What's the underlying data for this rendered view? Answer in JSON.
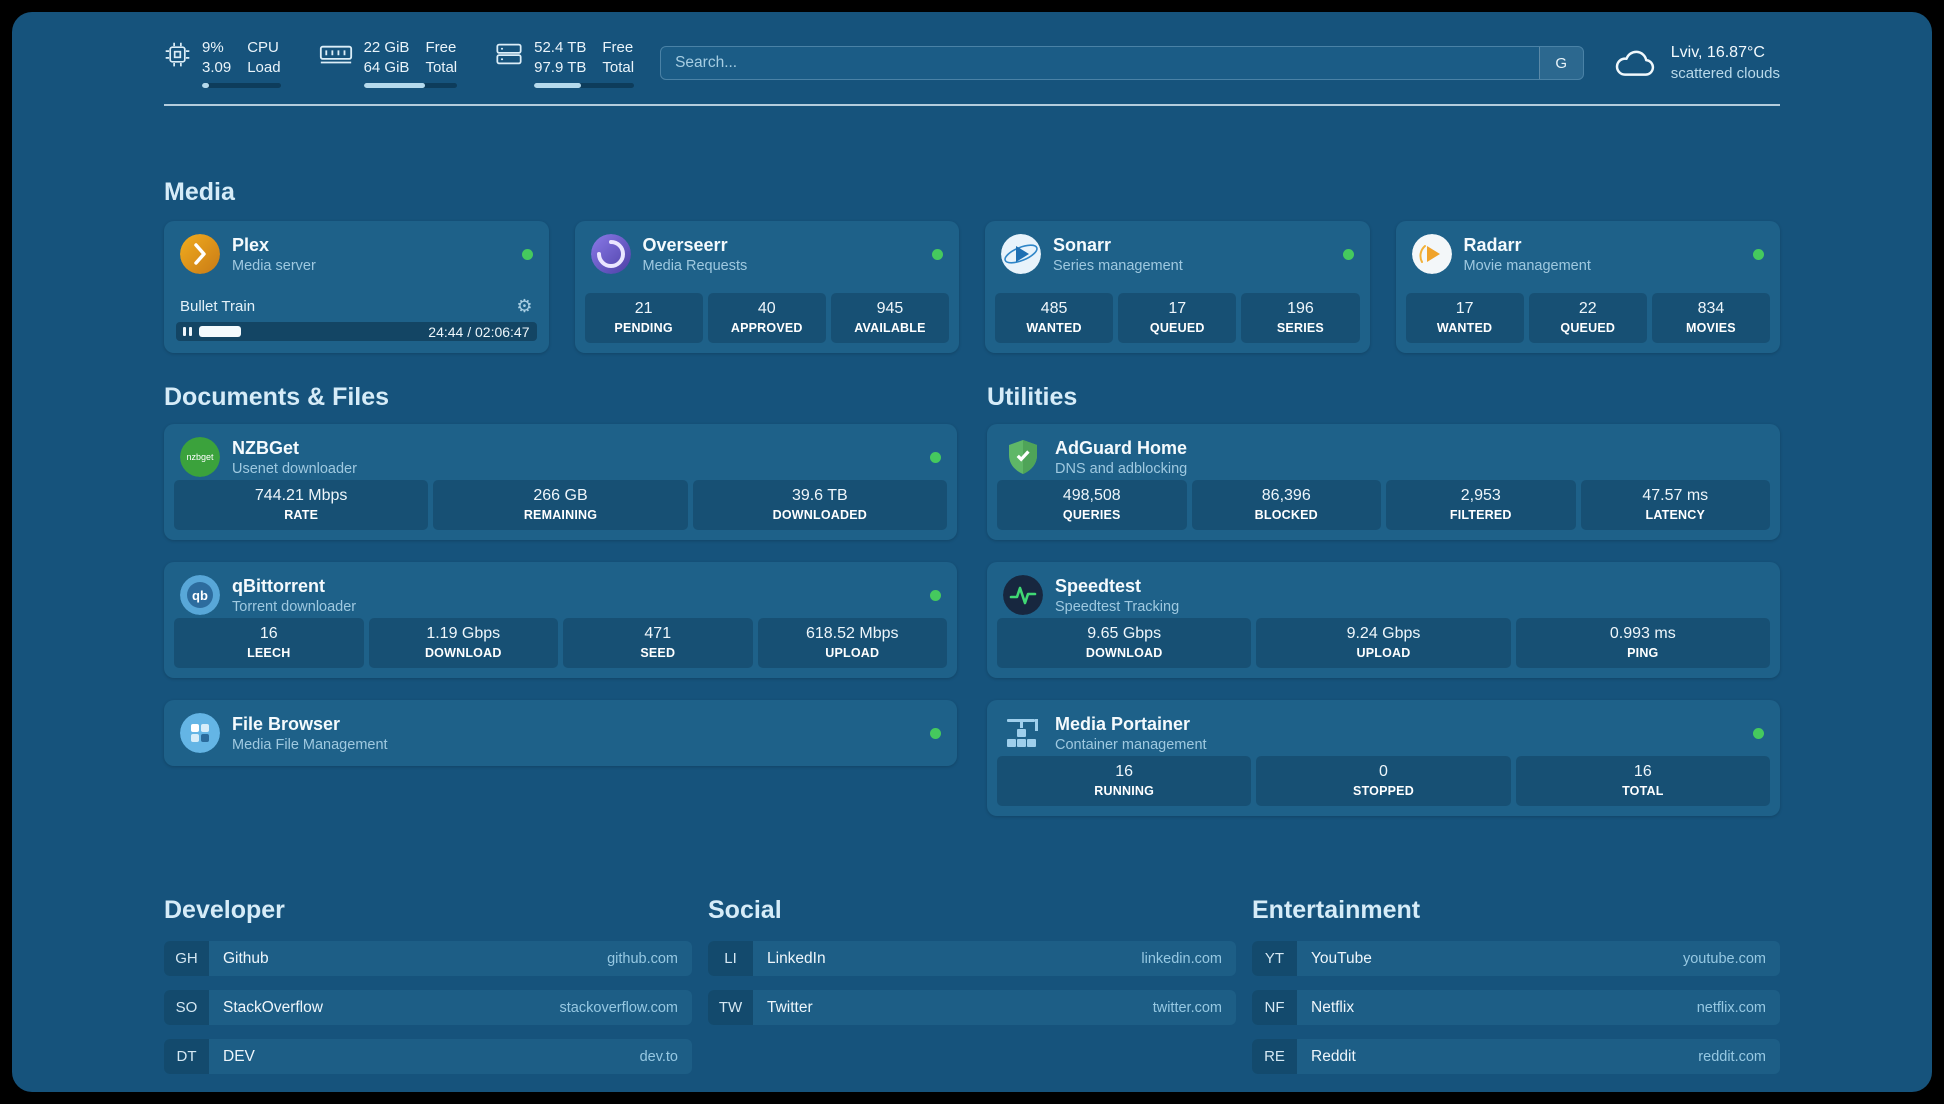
{
  "colors": {
    "background": "#16537c",
    "card": "#1e6189",
    "status_online": "#45c95e",
    "secondary_text": "#9fc9e0"
  },
  "header": {
    "cpu": {
      "value_top": "9%",
      "value_bottom": "3.09",
      "label_top": "CPU",
      "label_bottom": "Load",
      "bar_percent": 9
    },
    "memory": {
      "value_top": "22 GiB",
      "value_bottom": "64 GiB",
      "label_top": "Free",
      "label_bottom": "Total",
      "bar_percent": 66
    },
    "disk": {
      "value_top": "52.4 TB",
      "value_bottom": "97.9 TB",
      "label_top": "Free",
      "label_bottom": "Total",
      "bar_percent": 47
    },
    "search": {
      "placeholder": "Search...",
      "button_label": "G"
    },
    "weather": {
      "location": "Lviv, 16.87°C",
      "condition": "scattered clouds"
    }
  },
  "sections": {
    "media": "Media",
    "documents": "Documents & Files",
    "utilities": "Utilities"
  },
  "apps": {
    "plex": {
      "title": "Plex",
      "subtitle": "Media server",
      "now_playing": "Bullet Train",
      "time": "24:44 / 02:06:47",
      "progress_percent": 19
    },
    "overseerr": {
      "title": "Overseerr",
      "subtitle": "Media Requests",
      "stats": [
        {
          "value": "21",
          "label": "PENDING"
        },
        {
          "value": "40",
          "label": "APPROVED"
        },
        {
          "value": "945",
          "label": "AVAILABLE"
        }
      ]
    },
    "sonarr": {
      "title": "Sonarr",
      "subtitle": "Series management",
      "stats": [
        {
          "value": "485",
          "label": "WANTED"
        },
        {
          "value": "17",
          "label": "QUEUED"
        },
        {
          "value": "196",
          "label": "SERIES"
        }
      ]
    },
    "radarr": {
      "title": "Radarr",
      "subtitle": "Movie management",
      "stats": [
        {
          "value": "17",
          "label": "WANTED"
        },
        {
          "value": "22",
          "label": "QUEUED"
        },
        {
          "value": "834",
          "label": "MOVIES"
        }
      ]
    },
    "nzbget": {
      "title": "NZBGet",
      "subtitle": "Usenet downloader",
      "stats": [
        {
          "value": "744.21 Mbps",
          "label": "RATE"
        },
        {
          "value": "266 GB",
          "label": "REMAINING"
        },
        {
          "value": "39.6 TB",
          "label": "DOWNLOADED"
        }
      ]
    },
    "qbittorrent": {
      "title": "qBittorrent",
      "subtitle": "Torrent downloader",
      "stats": [
        {
          "value": "16",
          "label": "LEECH"
        },
        {
          "value": "1.19 Gbps",
          "label": "DOWNLOAD"
        },
        {
          "value": "471",
          "label": "SEED"
        },
        {
          "value": "618.52 Mbps",
          "label": "UPLOAD"
        }
      ]
    },
    "filebrowser": {
      "title": "File Browser",
      "subtitle": "Media File Management"
    },
    "adguard": {
      "title": "AdGuard Home",
      "subtitle": "DNS and adblocking",
      "stats": [
        {
          "value": "498,508",
          "label": "QUERIES"
        },
        {
          "value": "86,396",
          "label": "BLOCKED"
        },
        {
          "value": "2,953",
          "label": "FILTERED"
        },
        {
          "value": "47.57 ms",
          "label": "LATENCY"
        }
      ]
    },
    "speedtest": {
      "title": "Speedtest",
      "subtitle": "Speedtest Tracking",
      "stats": [
        {
          "value": "9.65 Gbps",
          "label": "DOWNLOAD"
        },
        {
          "value": "9.24 Gbps",
          "label": "UPLOAD"
        },
        {
          "value": "0.993 ms",
          "label": "PING"
        }
      ]
    },
    "portainer": {
      "title": "Media Portainer",
      "subtitle": "Container management",
      "stats": [
        {
          "value": "16",
          "label": "RUNNING"
        },
        {
          "value": "0",
          "label": "STOPPED"
        },
        {
          "value": "16",
          "label": "TOTAL"
        }
      ]
    }
  },
  "bookmarks": {
    "developer": {
      "title": "Developer",
      "items": [
        {
          "abbr": "GH",
          "name": "Github",
          "url": "github.com"
        },
        {
          "abbr": "SO",
          "name": "StackOverflow",
          "url": "stackoverflow.com"
        },
        {
          "abbr": "DT",
          "name": "DEV",
          "url": "dev.to"
        }
      ]
    },
    "social": {
      "title": "Social",
      "items": [
        {
          "abbr": "LI",
          "name": "LinkedIn",
          "url": "linkedin.com"
        },
        {
          "abbr": "TW",
          "name": "Twitter",
          "url": "twitter.com"
        }
      ]
    },
    "entertainment": {
      "title": "Entertainment",
      "items": [
        {
          "abbr": "YT",
          "name": "YouTube",
          "url": "youtube.com"
        },
        {
          "abbr": "NF",
          "name": "Netflix",
          "url": "netflix.com"
        },
        {
          "abbr": "RE",
          "name": "Reddit",
          "url": "reddit.com"
        }
      ]
    }
  },
  "icons": {
    "gear": "⚙",
    "nzbget_label": "nzbget",
    "qb_label": "qb"
  }
}
